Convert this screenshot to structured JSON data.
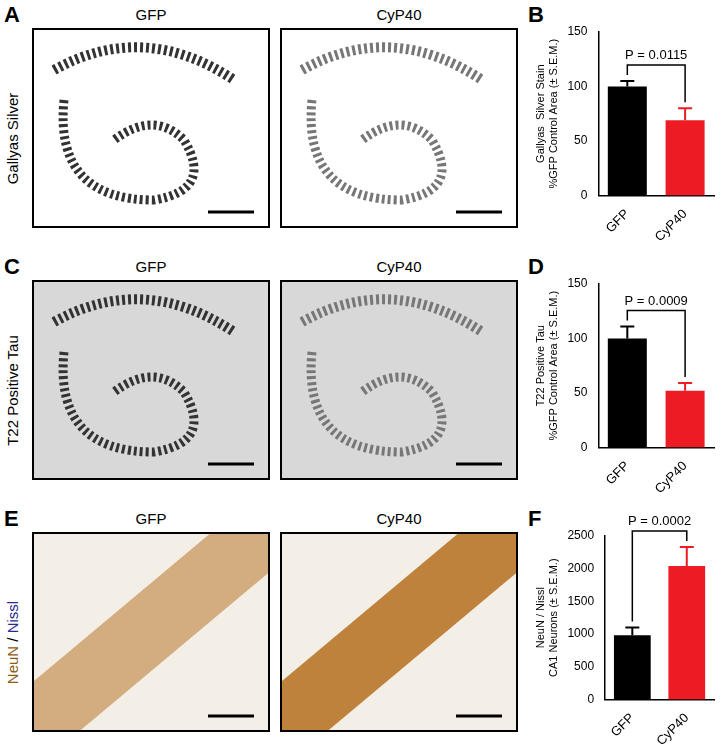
{
  "image_panels": [
    {
      "letter": "A",
      "label": "Gallyas Silver",
      "images": [
        "GFP",
        "CyP40"
      ]
    },
    {
      "letter": "C",
      "label": "T22 Positive Tau",
      "images": [
        "GFP",
        "CyP40"
      ]
    },
    {
      "letter": "E",
      "label": "NeuN / Nissl",
      "images": [
        "GFP",
        "CyP40"
      ]
    }
  ],
  "chart_data": [
    {
      "panel": "B",
      "type": "bar",
      "categories": [
        "GFP",
        "CyP40"
      ],
      "values": [
        100,
        69
      ],
      "errors": [
        5,
        11
      ],
      "colors": [
        "#000000",
        "#ed1c24"
      ],
      "y_label": [
        "Gallyas  Silver Stain",
        "%GFP Control Area (± S.E.M.)"
      ],
      "ylim": [
        0,
        150
      ],
      "yticks": [
        0,
        50,
        100,
        150
      ],
      "annotation": "P = 0.0115",
      "grid": false
    },
    {
      "panel": "D",
      "type": "bar",
      "categories": [
        "GFP",
        "CyP40"
      ],
      "values": [
        100,
        52
      ],
      "errors": [
        11,
        7
      ],
      "colors": [
        "#000000",
        "#ed1c24"
      ],
      "y_label": [
        "T22 Positive Tau",
        "%GFP Control Area (± S.E.M.)"
      ],
      "ylim": [
        0,
        150
      ],
      "yticks": [
        0,
        50,
        100,
        150
      ],
      "annotation": "P = 0.0009",
      "grid": false
    },
    {
      "panel": "F",
      "type": "bar",
      "categories": [
        "GFP",
        "CyP40"
      ],
      "values": [
        980,
        2040
      ],
      "errors": [
        120,
        290
      ],
      "colors": [
        "#000000",
        "#ed1c24"
      ],
      "y_label": [
        "NeuN / Nissl",
        "CA1 Neurons (± S.E.M.)"
      ],
      "ylim": [
        0,
        2500
      ],
      "yticks": [
        0,
        500,
        1000,
        1500,
        2000,
        2500
      ],
      "annotation": "P = 0.0002",
      "grid": false
    }
  ]
}
